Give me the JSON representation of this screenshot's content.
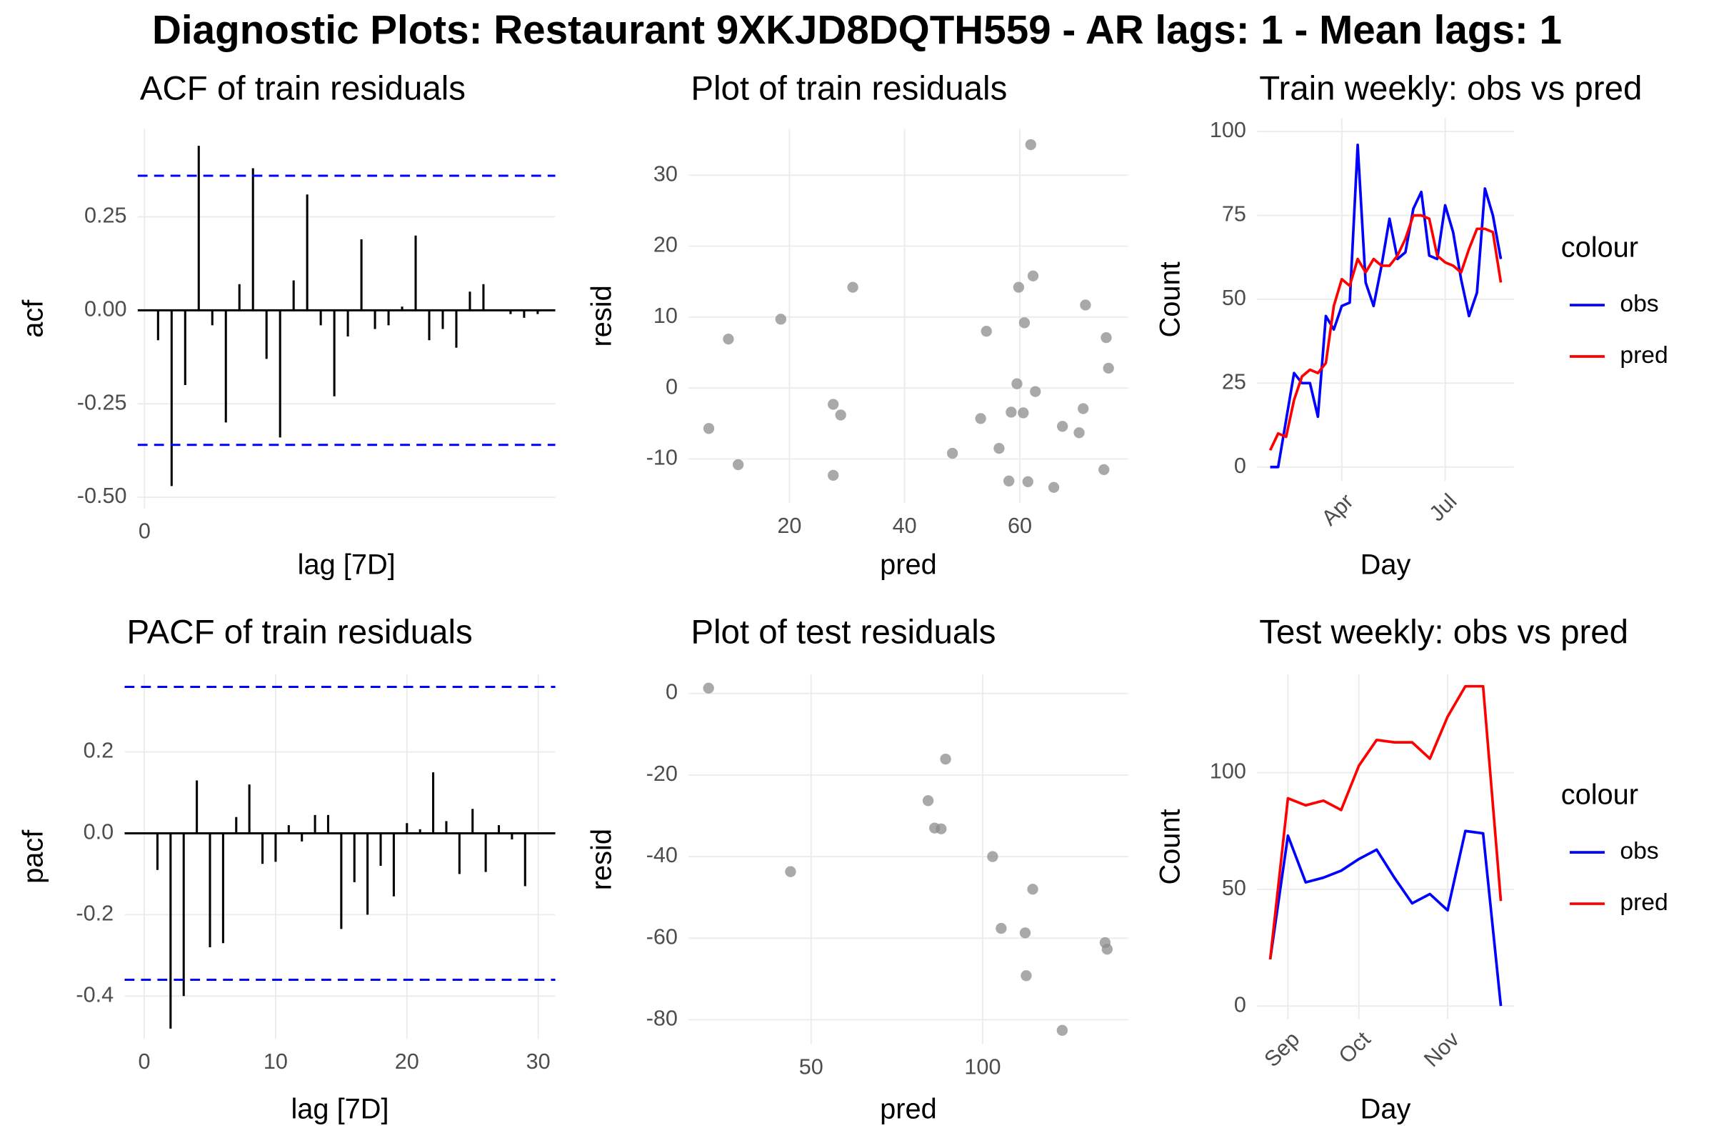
{
  "title": "Diagnostic Plots: Restaurant 9XKJD8DQTH559 - AR lags: 1 - Mean lags: 1",
  "chart_data": [
    {
      "type": "stem",
      "title": "ACF of train residuals",
      "xlabel": "lag [7D]",
      "ylabel": "acf",
      "color": "#000000",
      "x": [
        1,
        2,
        3,
        4,
        5,
        6,
        7,
        8,
        9,
        10,
        11,
        12,
        13,
        14,
        15,
        16,
        17,
        18,
        19,
        20,
        21,
        22,
        23,
        24,
        25,
        26,
        27,
        28,
        29
      ],
      "values": [
        -0.08,
        -0.47,
        -0.2,
        0.44,
        -0.04,
        -0.3,
        0.07,
        0.38,
        -0.13,
        -0.34,
        0.08,
        0.31,
        -0.04,
        -0.23,
        -0.07,
        0.19,
        -0.05,
        -0.04,
        0.01,
        0.2,
        -0.08,
        -0.05,
        -0.1,
        0.05,
        0.07,
        0,
        -0.01,
        -0.02,
        -0.01
      ],
      "hlines": [
        0.36,
        -0.36
      ],
      "hline_color": "#0000ff",
      "hline_style": "dashed",
      "xlim": [
        -0.5,
        30.3
      ],
      "xticks": [
        0
      ],
      "ylim": [
        -0.53,
        0.485
      ],
      "yticks": [
        {
          "value": -0.5,
          "label": "-0.50"
        },
        {
          "value": -0.25,
          "label": "-0.25"
        },
        {
          "value": 0,
          "label": "0.00"
        },
        0.25
      ],
      "grid": true
    },
    {
      "type": "scatter",
      "title": "Plot of train residuals",
      "xlabel": "pred",
      "ylabel": "resid",
      "color": "#8c8c8c",
      "x": [
        6.0,
        9.4,
        11.1,
        18.5,
        27.6,
        28.9,
        27.6,
        31.0,
        48.3,
        53.2,
        54.2,
        56.4,
        58.1,
        58.5,
        59.5,
        59.8,
        60.6,
        60.8,
        61.4,
        61.9,
        62.3,
        62.7,
        65.9,
        67.4,
        70.3,
        71.0,
        71.4,
        74.6,
        75.0,
        75.4
      ],
      "y": [
        -5.7,
        6.9,
        -10.8,
        9.7,
        -2.3,
        -3.8,
        -12.3,
        14.2,
        -9.2,
        -4.3,
        8.0,
        -8.5,
        -13.1,
        -3.4,
        0.6,
        14.2,
        -3.5,
        9.2,
        -13.2,
        34.3,
        15.8,
        -0.5,
        -14.0,
        -5.4,
        -6.3,
        -2.9,
        11.7,
        -11.5,
        7.1,
        2.8
      ],
      "xlim": [
        2.5,
        78.8
      ],
      "xticks": [
        20,
        40,
        60
      ],
      "ylim": [
        -16.2,
        36.5
      ],
      "yticks": [
        -10,
        0,
        10,
        20,
        30
      ],
      "grid": true
    },
    {
      "type": "line",
      "title": "Train weekly: obs vs pred",
      "xlabel": "Day",
      "ylabel": "Count",
      "legend_title": "colour",
      "legend": "right",
      "categories": [
        null,
        null,
        null,
        null,
        null,
        null,
        null,
        null,
        null,
        "Apr",
        null,
        null,
        null,
        null,
        null,
        null,
        null,
        null,
        null,
        null,
        null,
        null,
        "Jul",
        null,
        null,
        null,
        null,
        null,
        null,
        null
      ],
      "series": [
        {
          "name": "obs",
          "color": "#0000ff",
          "values": [
            0,
            0,
            14,
            28,
            25,
            25,
            15,
            45,
            41,
            48,
            49,
            96,
            55,
            48,
            60,
            74,
            62,
            64,
            77,
            82,
            63,
            62,
            78,
            70,
            56,
            45,
            52,
            83,
            75,
            62
          ]
        },
        {
          "name": "pred",
          "color": "#ff0000",
          "values": [
            5,
            10,
            9,
            20,
            27,
            29,
            28,
            31,
            48,
            56,
            54,
            62,
            58,
            62,
            60,
            60,
            63,
            68,
            75,
            75,
            74,
            63,
            61,
            60,
            58,
            65,
            71,
            71,
            70,
            55
          ]
        }
      ],
      "ylim": [
        -4.2,
        104
      ],
      "yticks": [
        0,
        25,
        50,
        75,
        100
      ],
      "grid": true
    },
    {
      "type": "stem",
      "title": "PACF of train residuals",
      "xlabel": "lag [7D]",
      "ylabel": "pacf",
      "color": "#000000",
      "x": [
        1,
        2,
        3,
        4,
        5,
        6,
        7,
        8,
        9,
        10,
        11,
        12,
        13,
        14,
        15,
        16,
        17,
        18,
        19,
        20,
        21,
        22,
        23,
        24,
        25,
        26,
        27,
        28,
        29
      ],
      "values": [
        -0.09,
        -0.48,
        -0.4,
        0.13,
        -0.28,
        -0.27,
        0.04,
        0.12,
        -0.075,
        -0.07,
        0.02,
        -0.02,
        0.045,
        0.045,
        -0.235,
        -0.12,
        -0.2,
        -0.08,
        -0.155,
        0.025,
        0.01,
        0.15,
        0.03,
        -0.1,
        0.06,
        -0.095,
        0.02,
        -0.015,
        -0.13
      ],
      "hlines": [
        0.36,
        -0.36
      ],
      "hline_color": "#0000ff",
      "hline_style": "dashed",
      "xlim": [
        -1.5,
        31.3
      ],
      "xticks": [
        0,
        10,
        20,
        30
      ],
      "ylim": [
        -0.505,
        0.39
      ],
      "yticks": [
        -0.4,
        -0.2,
        {
          "value": 0,
          "label": "0.0"
        },
        0.2
      ],
      "grid": true
    },
    {
      "type": "scatter",
      "title": "Plot of test residuals",
      "xlabel": "pred",
      "ylabel": "resid",
      "color": "#8c8c8c",
      "x": [
        20.1,
        44.0,
        84.1,
        86.0,
        87.9,
        89.2,
        102.9,
        105.4,
        112.4,
        112.7,
        114.6,
        123.2,
        135.7,
        136.3
      ],
      "y": [
        1.3,
        -43.7,
        -26.3,
        -33.0,
        -33.2,
        -16.1,
        -40.0,
        -57.6,
        -58.7,
        -69.2,
        -48.0,
        -82.6,
        -61.1,
        -62.7
      ],
      "xlim": [
        14.3,
        142.4
      ],
      "xticks": [
        50,
        100
      ],
      "ylim": [
        -86,
        4.6
      ],
      "yticks": [
        -80,
        -60,
        -40,
        -20,
        0
      ],
      "grid": true
    },
    {
      "type": "line",
      "title": "Test weekly: obs vs pred",
      "xlabel": "Day",
      "ylabel": "Count",
      "legend_title": "colour",
      "legend": "right",
      "categories": [
        null,
        "Sep",
        null,
        null,
        null,
        "Oct",
        null,
        null,
        null,
        null,
        "Nov",
        null,
        null,
        null
      ],
      "series": [
        {
          "name": "obs",
          "color": "#0000ff",
          "values": [
            20,
            73,
            53,
            55,
            58,
            63,
            67,
            55,
            44,
            48,
            41,
            75,
            74,
            0
          ]
        },
        {
          "name": "pred",
          "color": "#ff0000",
          "values": [
            20,
            89,
            86,
            88,
            84,
            103,
            114,
            113,
            113,
            106,
            124,
            137,
            137,
            45
          ]
        }
      ],
      "ylim": [
        -5.6,
        142
      ],
      "yticks": [
        0,
        50,
        100
      ],
      "grid": true
    }
  ]
}
